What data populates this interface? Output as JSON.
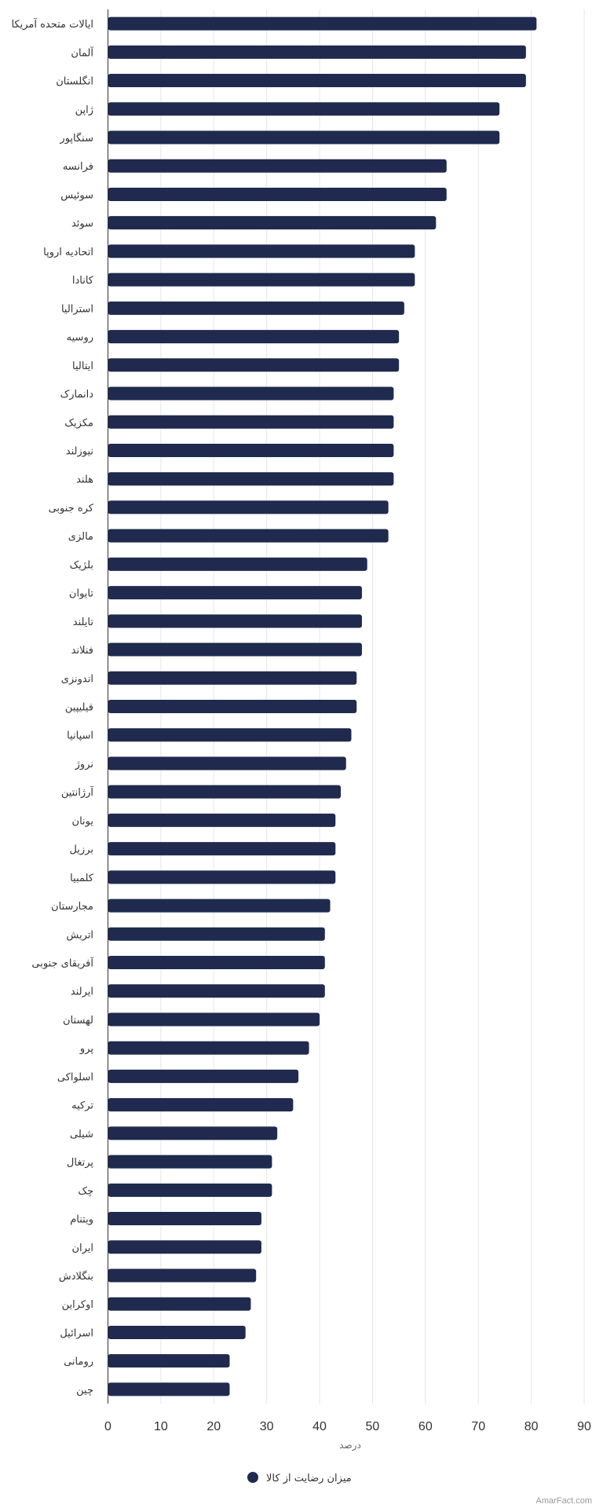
{
  "chart_data": {
    "type": "bar",
    "orientation": "horizontal",
    "categories": [
      "ایالات متحده آمریکا",
      "آلمان",
      "انگلستان",
      "ژاپن",
      "سنگاپور",
      "فرانسه",
      "سوئیس",
      "سوئد",
      "اتحادیه اروپا",
      "کانادا",
      "استرالیا",
      "روسیه",
      "ایتالیا",
      "دانمارک",
      "مکزیک",
      "نیوزلند",
      "هلند",
      "کره جنوبی",
      "مالزی",
      "بلژیک",
      "تایوان",
      "تایلند",
      "فنلاند",
      "اندونزی",
      "فیلیپین",
      "اسپانیا",
      "نروژ",
      "آرژانتین",
      "یونان",
      "برزیل",
      "کلمبیا",
      "مجارستان",
      "اتریش",
      "آفریقای جنوبی",
      "ایرلند",
      "لهستان",
      "پرو",
      "اسلواکی",
      "ترکیه",
      "شیلی",
      "پرتغال",
      "چک",
      "ویتنام",
      "ایران",
      "بنگلادش",
      "اوکراین",
      "اسرائیل",
      "رومانی",
      "چین"
    ],
    "series": [
      {
        "name": "میزان رضایت از کالا",
        "values": [
          81,
          79,
          79,
          74,
          74,
          64,
          64,
          62,
          58,
          58,
          56,
          55,
          55,
          54,
          54,
          54,
          54,
          53,
          53,
          49,
          48,
          48,
          48,
          47,
          47,
          46,
          45,
          44,
          43,
          43,
          43,
          42,
          41,
          41,
          41,
          40,
          38,
          36,
          35,
          32,
          31,
          31,
          29,
          29,
          28,
          27,
          26,
          23,
          23
        ]
      }
    ],
    "xlabel": "درصد",
    "ylabel": "",
    "xlim": [
      0,
      90
    ],
    "xticks": [
      0,
      10,
      20,
      30,
      40,
      50,
      60,
      70,
      80,
      90
    ],
    "grid": true,
    "legend": "bottom-center",
    "colors": {
      "bar": "#1f2a4e",
      "grid": "#e6e6e6",
      "axis": "#333333"
    }
  },
  "credit": "AmarFact.com"
}
